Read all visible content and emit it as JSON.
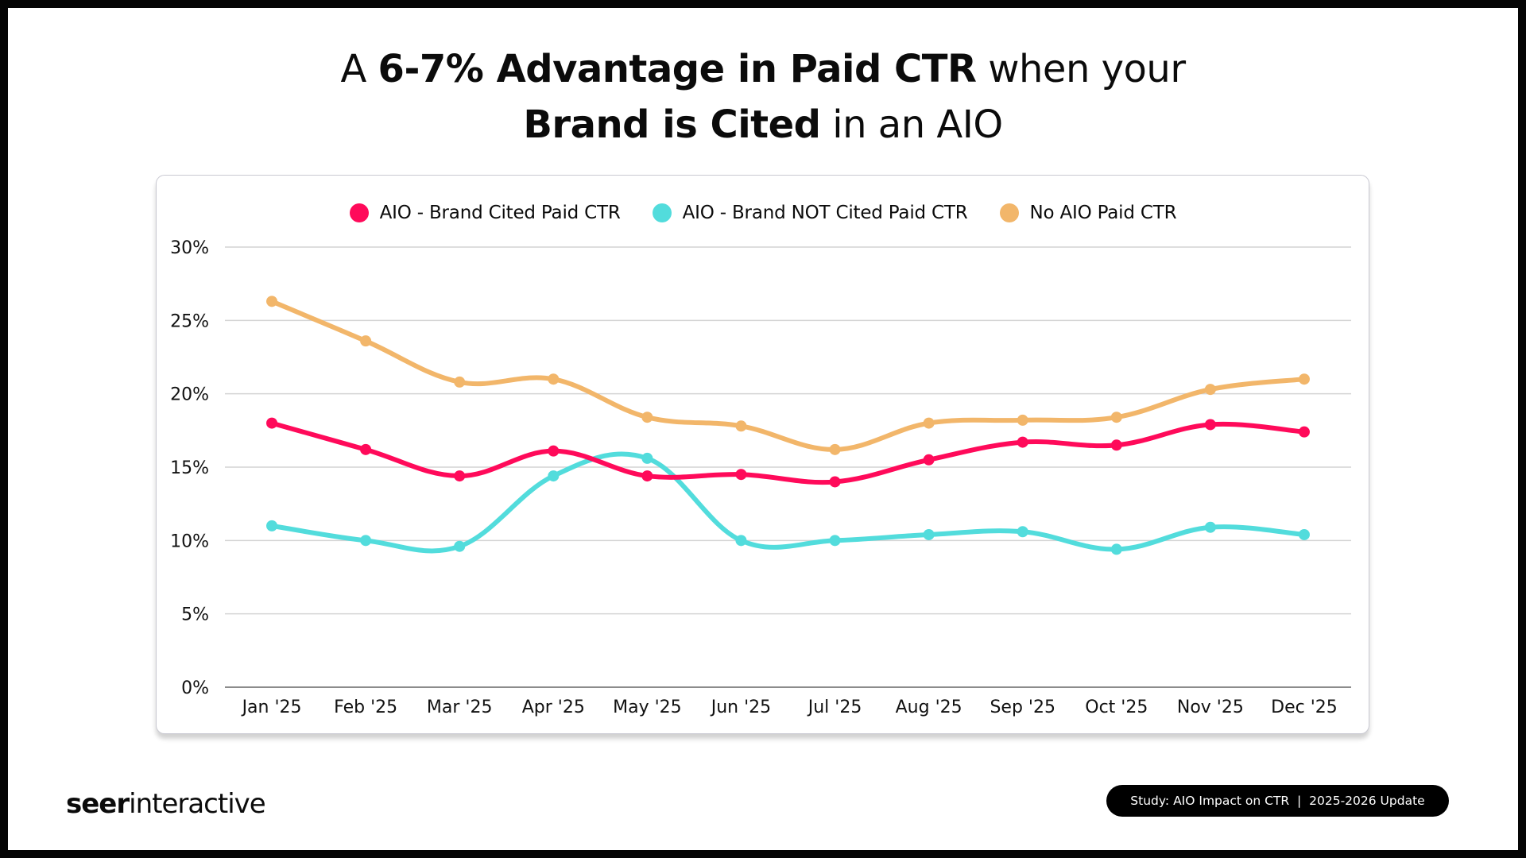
{
  "header": {
    "title_line1": [
      {
        "text": "A ",
        "bold": false
      },
      {
        "text": "6-7% Advantage in Paid CTR",
        "bold": true
      },
      {
        "text": " when your",
        "bold": false
      }
    ],
    "title_line2": [
      {
        "text": "Brand is Cited",
        "bold": true
      },
      {
        "text": " in an AIO",
        "bold": false
      }
    ]
  },
  "footer": {
    "logo_bold": "seer",
    "logo_regular": "interactive",
    "badge_text": "Study: AIO Impact on CTR  |  2025-2026 Update"
  },
  "chart_data": {
    "type": "line",
    "title": "A 6-7% Advantage in Paid CTR when your Brand is Cited in an AIO",
    "xlabel": "",
    "ylabel": "",
    "ylim": [
      0,
      30
    ],
    "yticks": [
      0,
      5,
      10,
      15,
      20,
      25,
      30
    ],
    "ytick_labels": [
      "0%",
      "5%",
      "10%",
      "15%",
      "20%",
      "25%",
      "30%"
    ],
    "grid": true,
    "legend_position": "top-center",
    "smooth": true,
    "categories": [
      "Jan '25",
      "Feb '25",
      "Mar '25",
      "Apr '25",
      "May '25",
      "Jun '25",
      "Jul '25",
      "Aug '25",
      "Sep '25",
      "Oct '25",
      "Nov '25",
      "Dec '25"
    ],
    "series": [
      {
        "name": "AIO - Brand Cited Paid CTR",
        "color": "#FF0A5A",
        "values": [
          18.0,
          16.2,
          14.4,
          16.1,
          14.4,
          14.5,
          14.0,
          15.5,
          16.7,
          16.5,
          17.9,
          17.4
        ]
      },
      {
        "name": "AIO - Brand NOT Cited Paid CTR",
        "color": "#52DCDC",
        "values": [
          11.0,
          10.0,
          9.6,
          14.4,
          15.6,
          10.0,
          10.0,
          10.4,
          10.6,
          9.4,
          10.9,
          10.4
        ]
      },
      {
        "name": "No AIO Paid CTR",
        "color": "#F2B66A",
        "values": [
          26.3,
          23.6,
          20.8,
          21.0,
          18.4,
          17.8,
          16.2,
          18.0,
          18.2,
          18.4,
          20.3,
          21.0
        ]
      }
    ]
  }
}
